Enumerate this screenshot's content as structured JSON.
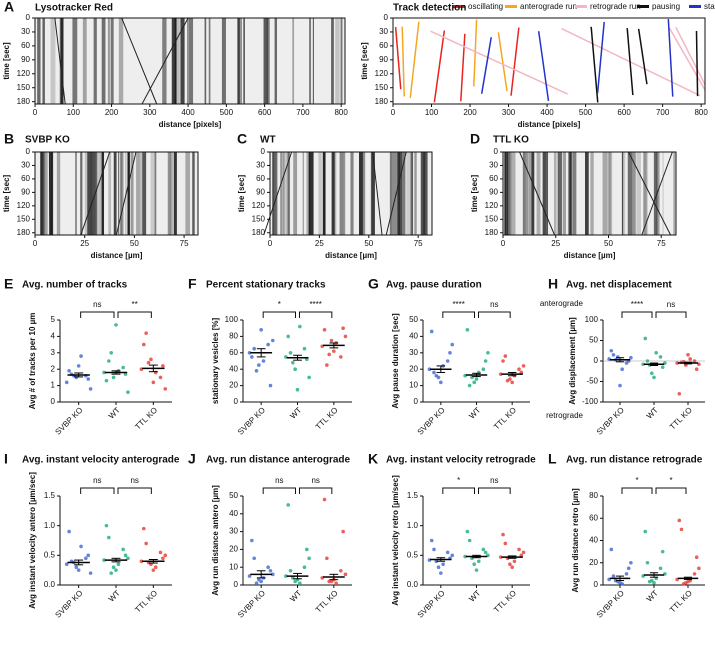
{
  "chart_data": [
    {
      "type": "kymograph",
      "panel": "A",
      "title": "Lysotracker Red",
      "xlabel": "distance [pixels]",
      "ylabel": "time [sec]",
      "xlim": [
        0,
        810
      ],
      "ylim": [
        0,
        185
      ],
      "xticks": [
        0,
        100,
        200,
        300,
        400,
        500,
        600,
        700,
        800
      ],
      "yticks": [
        0,
        30,
        60,
        90,
        120,
        150,
        180
      ]
    },
    {
      "type": "tracks",
      "title": "Track detection",
      "xlabel": "distance [pixels]",
      "ylabel": "time [sec]",
      "xlim": [
        0,
        810
      ],
      "ylim": [
        0,
        185
      ],
      "xticks": [
        0,
        100,
        200,
        300,
        400,
        500,
        600,
        700,
        800
      ],
      "yticks": [
        0,
        30,
        60,
        90,
        120,
        150,
        180
      ],
      "legend": [
        {
          "name": "oscillating",
          "color": "#e8241c"
        },
        {
          "name": "anterograde run",
          "color": "#f5a623"
        },
        {
          "name": "retrograde run",
          "color": "#f4b6c2"
        },
        {
          "name": "pausing",
          "color": "#111111"
        },
        {
          "name": "stationary",
          "color": "#2233cc"
        }
      ]
    },
    {
      "type": "kymograph",
      "panel": "B",
      "title": "SVBP KO",
      "xlabel": "distance [µm]",
      "ylabel": "time [sec]",
      "xlim": [
        0,
        82
      ],
      "ylim": [
        0,
        185
      ],
      "xticks": [
        0,
        25,
        50,
        75
      ],
      "yticks": [
        0,
        30,
        60,
        90,
        120,
        150,
        180
      ]
    },
    {
      "type": "kymograph",
      "panel": "C",
      "title": "WT",
      "xlabel": "distance [µm]",
      "ylabel": "time [sec]",
      "xlim": [
        0,
        82
      ],
      "ylim": [
        0,
        185
      ],
      "xticks": [
        0,
        25,
        50,
        75
      ],
      "yticks": [
        0,
        30,
        60,
        90,
        120,
        150,
        180
      ]
    },
    {
      "type": "kymograph",
      "panel": "D",
      "title": "TTL KO",
      "xlabel": "distance [µm]",
      "ylabel": "time [sec]",
      "xlim": [
        0,
        82
      ],
      "ylim": [
        0,
        185
      ],
      "xticks": [
        0,
        25,
        50,
        75
      ],
      "yticks": [
        0,
        30,
        60,
        90,
        120,
        150,
        180
      ]
    },
    {
      "type": "dot",
      "panel": "E",
      "title": "Avg. number of tracks",
      "ylabel": "Avg # of tracks per 10 µm",
      "categories": [
        "SVBP KO",
        "WT",
        "TTL KO"
      ],
      "colors": [
        "#4a6fd6",
        "#2ab07f",
        "#e8453c"
      ],
      "ylim": [
        0,
        5
      ],
      "yticks": [
        0,
        1,
        2,
        3,
        4,
        5
      ],
      "significance": [
        "ns",
        "**"
      ],
      "points": [
        [
          1.2,
          1.5,
          1.6,
          1.9,
          2.2,
          1.4,
          1.7,
          2.8,
          0.8,
          1.6
        ],
        [
          1.8,
          1.5,
          2.1,
          1.3,
          4.7,
          1.7,
          2.5,
          1.9,
          0.6,
          3.0
        ],
        [
          2.0,
          2.6,
          1.5,
          3.5,
          1.2,
          2.2,
          4.2,
          1.8,
          0.8,
          2.4
        ]
      ],
      "means": [
        1.65,
        1.8,
        2.05
      ],
      "errors": [
        0.12,
        0.1,
        0.2
      ]
    },
    {
      "type": "dot",
      "panel": "F",
      "title": "Percent stationary tracks",
      "ylabel": "stationary vesicles [%]",
      "categories": [
        "SVBP KO",
        "WT",
        "TTL KO"
      ],
      "colors": [
        "#4a6fd6",
        "#2ab07f",
        "#e8453c"
      ],
      "ylim": [
        0,
        100
      ],
      "yticks": [
        0,
        20,
        40,
        60,
        80,
        100
      ],
      "significance": [
        "*",
        "****"
      ],
      "points": [
        [
          60,
          45,
          70,
          55,
          88,
          20,
          65,
          50,
          75,
          38
        ],
        [
          55,
          40,
          65,
          80,
          15,
          52,
          60,
          92,
          30,
          48
        ],
        [
          68,
          75,
          55,
          88,
          62,
          90,
          45,
          72,
          80,
          58
        ]
      ],
      "means": [
        60,
        54,
        69
      ],
      "errors": [
        5,
        3,
        3
      ]
    },
    {
      "type": "dot",
      "panel": "G",
      "title": "Avg. pause duration",
      "ylabel": "Avg pause duration [sec]",
      "categories": [
        "SVBP KO",
        "WT",
        "TTL KO"
      ],
      "colors": [
        "#4a6fd6",
        "#2ab07f",
        "#e8453c"
      ],
      "ylim": [
        0,
        50
      ],
      "yticks": [
        0,
        10,
        20,
        30,
        40,
        50
      ],
      "significance": [
        "****",
        "ns"
      ],
      "points": [
        [
          20,
          15,
          25,
          43,
          12,
          30,
          18,
          22,
          35,
          16
        ],
        [
          16,
          12,
          20,
          44,
          14,
          25,
          10,
          18,
          30,
          15
        ],
        [
          17,
          14,
          20,
          25,
          12,
          18,
          28,
          16,
          22,
          13
        ]
      ],
      "means": [
        20,
        16.5,
        17
      ],
      "errors": [
        2,
        1,
        1
      ]
    },
    {
      "type": "dot",
      "panel": "H",
      "title": "Avg. net displacement",
      "ylabel": "Avg displacement [µm]",
      "direction_top": "anterograde",
      "direction_bottom": "retrograde",
      "categories": [
        "SVBP KO",
        "WT",
        "TTL KO"
      ],
      "colors": [
        "#4a6fd6",
        "#2ab07f",
        "#e8453c"
      ],
      "ylim": [
        -100,
        100
      ],
      "yticks": [
        -100,
        -50,
        0,
        50,
        100
      ],
      "significance": [
        "****",
        "ns"
      ],
      "points": [
        [
          5,
          10,
          -5,
          25,
          -60,
          0,
          15,
          -20,
          8,
          3
        ],
        [
          -8,
          -30,
          10,
          55,
          -40,
          -15,
          0,
          20,
          -5,
          -10
        ],
        [
          -5,
          -10,
          0,
          -80,
          15,
          -20,
          -3,
          5,
          -8,
          -2
        ]
      ],
      "means": [
        3,
        -8,
        -5
      ],
      "errors": [
        5,
        3,
        2
      ]
    },
    {
      "type": "dot",
      "panel": "I",
      "title": "Avg. instant velocity anterograde",
      "ylabel": "Avg instant velocity antero [µm/sec]",
      "categories": [
        "SVBP KO",
        "WT",
        "TTL KO"
      ],
      "colors": [
        "#4a6fd6",
        "#2ab07f",
        "#e8453c"
      ],
      "ylim": [
        0,
        1.5
      ],
      "yticks": [
        {
          "value": 0,
          "label": "0.0"
        },
        0.5,
        {
          "value": 1,
          "label": "1.0"
        },
        1.5
      ],
      "significance": [
        "ns",
        "ns"
      ],
      "points": [
        [
          0.35,
          0.3,
          0.45,
          0.9,
          0.25,
          0.5,
          0.4,
          0.65,
          0.2,
          0.38
        ],
        [
          0.42,
          0.3,
          0.6,
          1.0,
          0.25,
          0.5,
          0.8,
          0.35,
          0.45,
          0.2
        ],
        [
          0.4,
          0.35,
          0.55,
          0.95,
          0.25,
          0.45,
          0.7,
          0.3,
          0.5,
          0.38
        ]
      ],
      "means": [
        0.38,
        0.42,
        0.4
      ],
      "errors": [
        0.04,
        0.03,
        0.03
      ]
    },
    {
      "type": "dot",
      "panel": "J",
      "title": "Avg. run distance anterograde",
      "ylabel": "Avg run distance antero [µm]",
      "categories": [
        "SVBP KO",
        "WT",
        "TTL KO"
      ],
      "colors": [
        "#4a6fd6",
        "#2ab07f",
        "#e8453c"
      ],
      "ylim": [
        0,
        50
      ],
      "yticks": [
        0,
        10,
        20,
        30,
        40,
        50
      ],
      "significance": [
        "ns",
        "ns"
      ],
      "points": [
        [
          5,
          3,
          10,
          25,
          2,
          8,
          15,
          4,
          6,
          1
        ],
        [
          5,
          2,
          10,
          45,
          3,
          20,
          8,
          1,
          15,
          4
        ],
        [
          4,
          2,
          8,
          48,
          3,
          30,
          15,
          1,
          6,
          2
        ]
      ],
      "means": [
        6,
        5,
        4.5
      ],
      "errors": [
        2,
        1.5,
        1.5
      ]
    },
    {
      "type": "dot",
      "panel": "K",
      "title": "Avg. instant velocity retrograde",
      "ylabel": "Avg instant velocity retro [µm/sec]",
      "categories": [
        "SVBP KO",
        "WT",
        "TTL KO"
      ],
      "colors": [
        "#4a6fd6",
        "#2ab07f",
        "#e8453c"
      ],
      "ylim": [
        0,
        1.5
      ],
      "yticks": [
        {
          "value": 0,
          "label": "0.0"
        },
        0.5,
        {
          "value": 1,
          "label": "1.0"
        },
        1.5
      ],
      "significance": [
        "*",
        "ns"
      ],
      "points": [
        [
          0.42,
          0.3,
          0.55,
          0.75,
          0.2,
          0.45,
          0.6,
          0.35,
          0.5,
          0.4
        ],
        [
          0.48,
          0.35,
          0.6,
          0.9,
          0.25,
          0.55,
          0.75,
          0.4,
          0.5,
          0.45
        ],
        [
          0.47,
          0.35,
          0.6,
          0.85,
          0.3,
          0.5,
          0.7,
          0.4,
          0.55,
          0.45
        ]
      ],
      "means": [
        0.43,
        0.48,
        0.47
      ],
      "errors": [
        0.03,
        0.02,
        0.02
      ]
    },
    {
      "type": "dot",
      "panel": "L",
      "title": "Avg. run distance retrograde",
      "ylabel": "Avg run distance retro [µm]",
      "categories": [
        "SVBP KO",
        "WT",
        "TTL KO"
      ],
      "colors": [
        "#4a6fd6",
        "#2ab07f",
        "#e8453c"
      ],
      "ylim": [
        0,
        80
      ],
      "yticks": [
        0,
        20,
        40,
        60,
        80
      ],
      "significance": [
        "*",
        "*"
      ],
      "points": [
        [
          5,
          3,
          10,
          32,
          2,
          15,
          8,
          1,
          20,
          4
        ],
        [
          8,
          4,
          15,
          48,
          2,
          30,
          20,
          6,
          10,
          3
        ],
        [
          5,
          2,
          10,
          58,
          3,
          25,
          50,
          4,
          15,
          1
        ]
      ],
      "means": [
        6,
        9,
        6
      ],
      "errors": [
        2,
        2,
        1
      ]
    }
  ]
}
